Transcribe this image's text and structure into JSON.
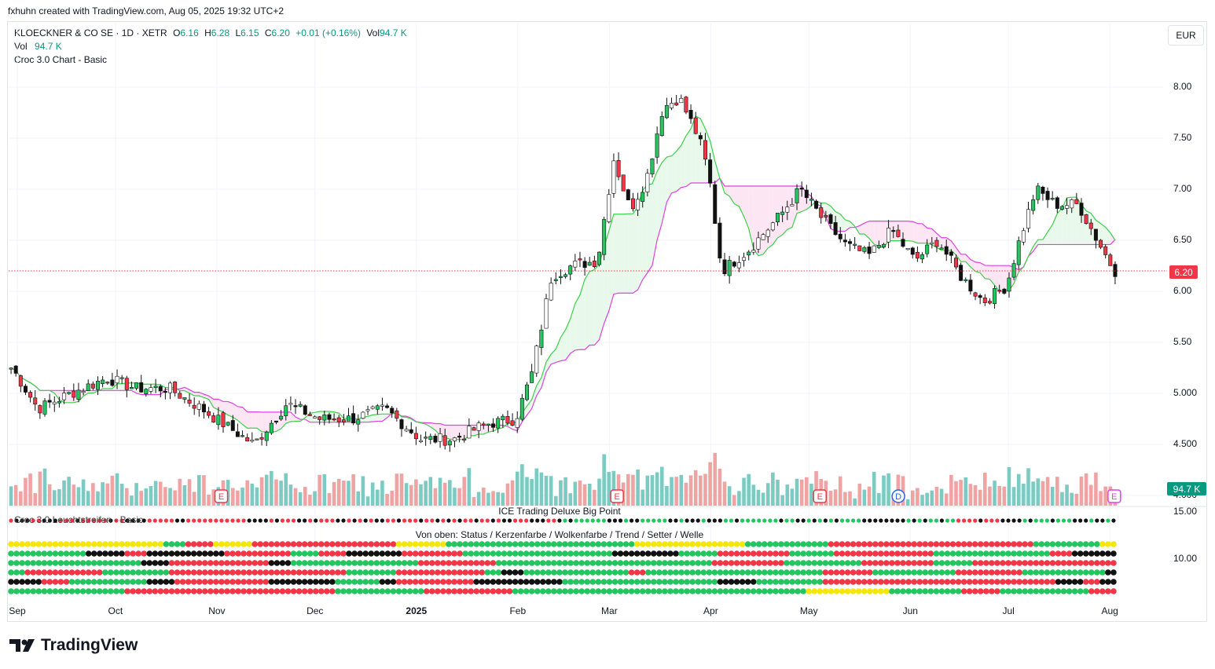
{
  "header": {
    "creator_line": "fxhuhn created with TradingView.com, Aug 05, 2025 19:32 UTC+2",
    "symbol": "KLOECKNER & CO SE · 1D · XETR",
    "o_label": "O",
    "o_value": "6.16",
    "h_label": "H",
    "h_value": "6.28",
    "l_label": "L",
    "l_value": "6.15",
    "c_label": "C",
    "c_value": "6.20",
    "change": "+0.01 (+0.16%)",
    "vol_label": "Vol",
    "vol_value": "94.7 K",
    "vol_legend_label": "Vol",
    "vol_legend_value": "94.7 K",
    "indicator_name": "Croc 3.0 Chart - Basic",
    "currency": "EUR"
  },
  "colors": {
    "up": "#22c55e",
    "down": "#f23645",
    "cloud_fill": "#e8f9ec",
    "cloud_fill_bear": "#fde6f4",
    "kijun": "#e040e0",
    "tenkan": "#3cd04a",
    "vol_up": "#7ccbc2",
    "vol_down": "#f0a3a3",
    "yellow": "#f5e60a",
    "black": "#111111",
    "brand": "#131722"
  },
  "price_axis": [
    "8.00",
    "7.50",
    "7.00",
    "6.50",
    "6.00",
    "5.50",
    "5.000",
    "4.500",
    "4.000"
  ],
  "panel_axis": [
    "15.00",
    "10.00"
  ],
  "current_price_label": "6.20",
  "current_volume_label": "94.7 K",
  "x_axis": [
    "Sep",
    "Oct",
    "Nov",
    "Dec",
    "2025",
    "Jan",
    "Feb",
    "Mar",
    "Apr",
    "May",
    "Jun",
    "Jul",
    "Aug"
  ],
  "panels": {
    "big_point_title": "ICE Trading Deluxe Big Point",
    "overlay_label": "Croc 3.0 Leuchtstreifen - Basic",
    "matrix_title": "Von oben: Status / Kerzenfarbe / Wolkenfarbe / Trend / Setter / Welle"
  },
  "event_badges": [
    "E",
    "E",
    "E",
    "D",
    "E"
  ],
  "brand": "TradingView",
  "chart_data": {
    "type": "candlestick",
    "title": "KLOECKNER & CO SE · 1D · XETR",
    "ylim": [
      4.0,
      8.2
    ],
    "months": [
      "Sep 2024",
      "Oct",
      "Nov",
      "Dec",
      "Jan 2025",
      "Feb",
      "Mar",
      "Apr",
      "May",
      "Jun",
      "Jul",
      "Aug"
    ],
    "close_path": [
      [
        "2024-09-02",
        5.25
      ],
      [
        "2024-09-10",
        4.85
      ],
      [
        "2024-09-20",
        5.0
      ],
      [
        "2024-10-01",
        5.15
      ],
      [
        "2024-10-10",
        5.05
      ],
      [
        "2024-10-20",
        5.05
      ],
      [
        "2024-10-30",
        4.85
      ],
      [
        "2024-11-08",
        4.65
      ],
      [
        "2024-11-15",
        4.5
      ],
      [
        "2024-11-25",
        4.9
      ],
      [
        "2024-12-05",
        4.75
      ],
      [
        "2024-12-15",
        4.75
      ],
      [
        "2024-12-25",
        4.85
      ],
      [
        "2025-01-05",
        4.55
      ],
      [
        "2025-01-15",
        4.55
      ],
      [
        "2025-01-25",
        4.7
      ],
      [
        "2025-02-03",
        4.75
      ],
      [
        "2025-02-08",
        5.2
      ],
      [
        "2025-02-14",
        6.15
      ],
      [
        "2025-02-20",
        6.25
      ],
      [
        "2025-02-28",
        6.3
      ],
      [
        "2025-03-05",
        7.3
      ],
      [
        "2025-03-10",
        6.8
      ],
      [
        "2025-03-15",
        7.1
      ],
      [
        "2025-03-20",
        7.8
      ],
      [
        "2025-03-25",
        7.9
      ],
      [
        "2025-03-31",
        7.5
      ],
      [
        "2025-04-03",
        7.15
      ],
      [
        "2025-04-07",
        6.2
      ],
      [
        "2025-04-15",
        6.4
      ],
      [
        "2025-04-25",
        6.75
      ],
      [
        "2025-05-01",
        7.0
      ],
      [
        "2025-05-08",
        6.7
      ],
      [
        "2025-05-15",
        6.45
      ],
      [
        "2025-05-22",
        6.35
      ],
      [
        "2025-05-29",
        6.6
      ],
      [
        "2025-06-05",
        6.3
      ],
      [
        "2025-06-12",
        6.5
      ],
      [
        "2025-06-19",
        6.15
      ],
      [
        "2025-06-26",
        5.9
      ],
      [
        "2025-07-03",
        6.05
      ],
      [
        "2025-07-07",
        6.5
      ],
      [
        "2025-07-12",
        7.0
      ],
      [
        "2025-07-18",
        6.85
      ],
      [
        "2025-07-25",
        6.85
      ],
      [
        "2025-07-30",
        6.55
      ],
      [
        "2025-08-05",
        6.2
      ]
    ],
    "last": {
      "open": 6.16,
      "high": 6.28,
      "low": 6.15,
      "close": 6.2,
      "volume": "94.7 K"
    }
  }
}
